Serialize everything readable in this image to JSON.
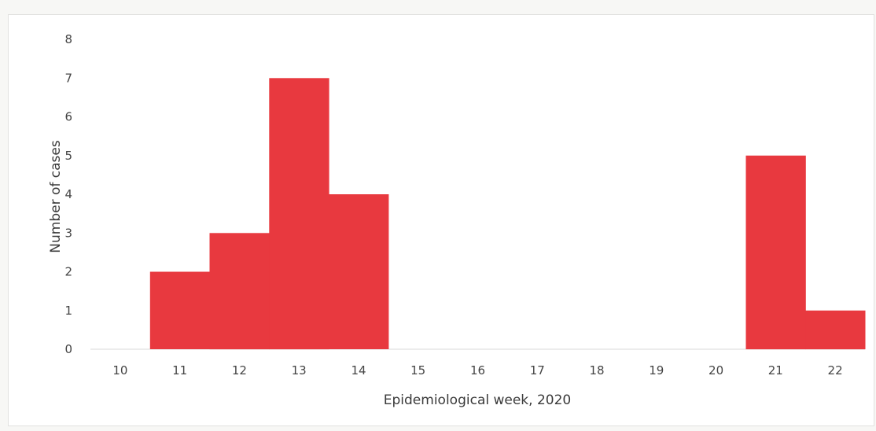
{
  "chart_data": {
    "type": "bar",
    "categories": [
      "10",
      "11",
      "12",
      "13",
      "14",
      "15",
      "16",
      "17",
      "18",
      "19",
      "20",
      "21",
      "22"
    ],
    "values": [
      0,
      2,
      3,
      7,
      4,
      0,
      0,
      0,
      0,
      0,
      0,
      5,
      1
    ],
    "title": "",
    "xlabel": "Epidemiological week, 2020",
    "ylabel": "Number of cases",
    "ylim": [
      0,
      8
    ],
    "yticks": [
      "0",
      "1",
      "2",
      "3",
      "4",
      "5",
      "6",
      "7",
      "8"
    ],
    "grid": false,
    "bar_color": "#e8393f",
    "gap": 0
  }
}
